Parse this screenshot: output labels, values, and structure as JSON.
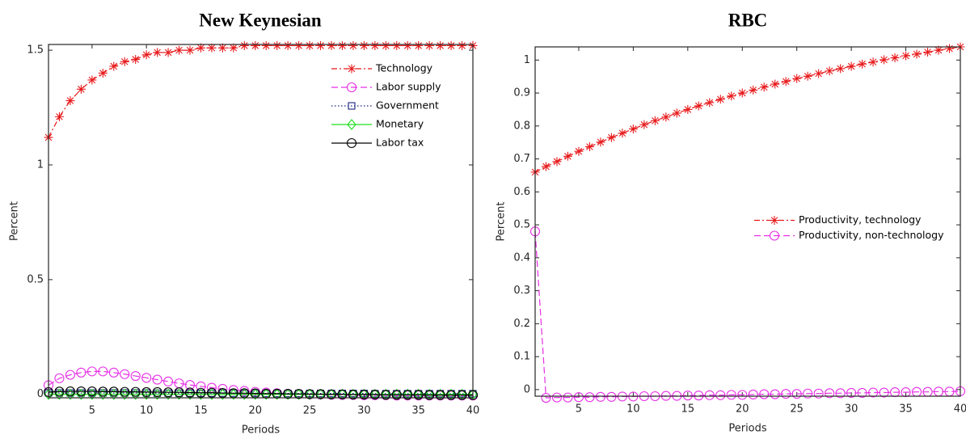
{
  "chart_data": [
    {
      "type": "line",
      "title": "New Keynesian",
      "xlabel": "Periods",
      "ylabel": "Percent",
      "x": [
        1,
        2,
        3,
        4,
        5,
        6,
        7,
        8,
        9,
        10,
        11,
        12,
        13,
        14,
        15,
        16,
        17,
        18,
        19,
        20,
        21,
        22,
        23,
        24,
        25,
        26,
        27,
        28,
        29,
        30,
        31,
        32,
        33,
        34,
        35,
        36,
        37,
        38,
        39,
        40
      ],
      "xlim": [
        1,
        40
      ],
      "xticks": [
        5,
        10,
        15,
        20,
        25,
        30,
        35,
        40
      ],
      "ylim": [
        -0.015,
        1.525
      ],
      "yticks": [
        0,
        0.5,
        1,
        1.5
      ],
      "legend": "upper right",
      "series": [
        {
          "name": "Technology",
          "color": "#e8191b",
          "linestyle": "dashdot",
          "marker": "star",
          "values": [
            1.12,
            1.21,
            1.28,
            1.33,
            1.37,
            1.4,
            1.43,
            1.45,
            1.46,
            1.48,
            1.49,
            1.49,
            1.5,
            1.5,
            1.51,
            1.51,
            1.51,
            1.51,
            1.52,
            1.52,
            1.52,
            1.52,
            1.52,
            1.52,
            1.52,
            1.52,
            1.52,
            1.52,
            1.52,
            1.52,
            1.52,
            1.52,
            1.52,
            1.52,
            1.52,
            1.52,
            1.52,
            1.52,
            1.52,
            1.52
          ]
        },
        {
          "name": "Labor supply",
          "color": "#e62ee6",
          "linestyle": "dashed",
          "marker": "circle",
          "values": [
            0.04,
            0.07,
            0.085,
            0.095,
            0.1,
            0.1,
            0.095,
            0.088,
            0.08,
            0.072,
            0.064,
            0.056,
            0.048,
            0.041,
            0.035,
            0.029,
            0.024,
            0.019,
            0.015,
            0.011,
            0.008,
            0.005,
            0.003,
            0.001,
            0,
            -0.001,
            -0.002,
            -0.003,
            -0.003,
            -0.004,
            -0.004,
            -0.004,
            -0.005,
            -0.005,
            -0.005,
            -0.005,
            -0.005,
            -0.005,
            -0.005,
            -0.005
          ]
        },
        {
          "name": "Government",
          "color": "#1a237e",
          "linestyle": "dotted",
          "marker": "square",
          "values": [
            0.006,
            0.006,
            0.006,
            0.006,
            0.006,
            0.006,
            0.006,
            0.006,
            0.006,
            0.006,
            0.005,
            0.005,
            0.005,
            0.005,
            0.005,
            0.005,
            0.005,
            0.005,
            0.005,
            0.005,
            0.004,
            0.004,
            0.004,
            0.004,
            0.004,
            0.004,
            0.004,
            0.004,
            0.004,
            0.004,
            0.003,
            0.003,
            0.003,
            0.003,
            0.003,
            0.003,
            0.003,
            0.003,
            0.003,
            0.003
          ]
        },
        {
          "name": "Monetary",
          "color": "#22dd22",
          "linestyle": "solid",
          "marker": "diamond",
          "values": [
            0,
            0,
            0,
            0,
            0,
            0,
            0,
            0,
            0,
            0,
            0,
            0,
            0,
            0,
            0,
            0,
            0,
            0,
            0,
            0,
            0,
            0,
            0,
            0,
            0,
            0,
            0,
            0,
            0,
            0,
            0,
            0,
            0,
            0,
            0,
            0,
            0,
            0,
            0,
            0
          ]
        },
        {
          "name": "Labor tax",
          "color": "#000000",
          "linestyle": "solid",
          "marker": "circle",
          "values": [
            0.01,
            0.012,
            0.013,
            0.013,
            0.013,
            0.012,
            0.012,
            0.011,
            0.011,
            0.01,
            0.01,
            0.009,
            0.009,
            0.008,
            0.007,
            0.007,
            0.006,
            0.005,
            0.005,
            0.004,
            0.003,
            0.003,
            0.002,
            0.002,
            0.001,
            0.001,
            0,
            0,
            -0.001,
            -0.001,
            -0.001,
            -0.002,
            -0.002,
            -0.002,
            -0.002,
            -0.003,
            -0.003,
            -0.003,
            -0.003,
            -0.003
          ]
        }
      ]
    },
    {
      "type": "line",
      "title": "RBC",
      "xlabel": "Periods",
      "ylabel": "Percent",
      "x": [
        1,
        2,
        3,
        4,
        5,
        6,
        7,
        8,
        9,
        10,
        11,
        12,
        13,
        14,
        15,
        16,
        17,
        18,
        19,
        20,
        21,
        22,
        23,
        24,
        25,
        26,
        27,
        28,
        29,
        30,
        31,
        32,
        33,
        34,
        35,
        36,
        37,
        38,
        39,
        40
      ],
      "xlim": [
        1,
        40
      ],
      "xticks": [
        5,
        10,
        15,
        20,
        25,
        30,
        35,
        40
      ],
      "ylim": [
        -0.02,
        1.04
      ],
      "yticks": [
        0,
        0.1,
        0.2,
        0.3,
        0.4,
        0.5,
        0.6,
        0.7,
        0.8,
        0.9,
        1
      ],
      "legend": "center right",
      "series": [
        {
          "name": "Productivity, technology",
          "color": "#e8191b",
          "linestyle": "dashdot",
          "marker": "star",
          "values": [
            0.66,
            0.677,
            0.692,
            0.708,
            0.723,
            0.737,
            0.751,
            0.765,
            0.778,
            0.791,
            0.804,
            0.816,
            0.827,
            0.839,
            0.85,
            0.861,
            0.871,
            0.881,
            0.891,
            0.9,
            0.909,
            0.918,
            0.927,
            0.935,
            0.944,
            0.951,
            0.959,
            0.967,
            0.974,
            0.981,
            0.988,
            0.994,
            1.001,
            1.007,
            1.013,
            1.018,
            1.024,
            1.03,
            1.035,
            1.04
          ]
        },
        {
          "name": "Productivity, non-technology",
          "color": "#e62ee6",
          "linestyle": "dashed",
          "marker": "circle",
          "values": [
            0.48,
            -0.025,
            -0.024,
            -0.024,
            -0.023,
            -0.023,
            -0.022,
            -0.022,
            -0.021,
            -0.021,
            -0.02,
            -0.02,
            -0.019,
            -0.019,
            -0.018,
            -0.018,
            -0.017,
            -0.017,
            -0.016,
            -0.016,
            -0.015,
            -0.014,
            -0.014,
            -0.013,
            -0.013,
            -0.012,
            -0.012,
            -0.011,
            -0.011,
            -0.01,
            -0.01,
            -0.009,
            -0.009,
            -0.008,
            -0.008,
            -0.007,
            -0.007,
            -0.006,
            -0.006,
            -0.005
          ]
        }
      ]
    }
  ]
}
